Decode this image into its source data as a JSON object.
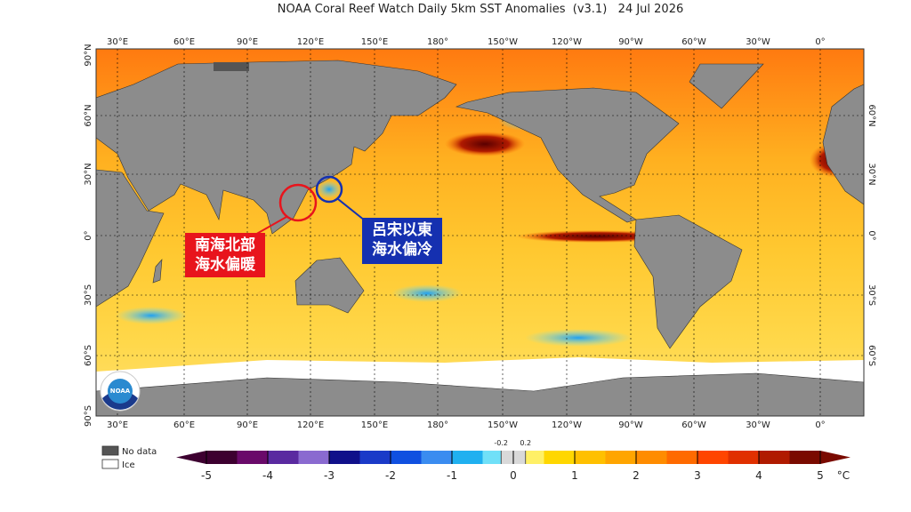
{
  "title": "NOAA Coral Reef Watch Daily 5km SST Anomalies  (v3.1)   24 Jul 2026",
  "longitude_labels": [
    "30°E",
    "60°E",
    "90°E",
    "120°E",
    "150°E",
    "180°",
    "150°W",
    "120°W",
    "90°W",
    "60°W",
    "30°W",
    "0°"
  ],
  "latitude_labels_left": [
    "90°N",
    "60°N",
    "30°N",
    "0°",
    "30°S",
    "60°S",
    "90°S"
  ],
  "latitude_labels_right": [
    "60°N",
    "30°N",
    "0°",
    "30°S",
    "60°S"
  ],
  "annotations": [
    {
      "lines": [
        "南海北部",
        "海水偏暖"
      ],
      "color": "#e8141c"
    },
    {
      "lines": [
        "呂宋以東",
        "海水偏冷"
      ],
      "color": "#1530b0"
    }
  ],
  "logo": "NOAA",
  "legend": [
    {
      "label": "No data",
      "color": "#555555"
    },
    {
      "label": "Ice",
      "color": "#ffffff"
    }
  ],
  "colorbar": {
    "ticks": [
      -5,
      -4,
      -3,
      -2,
      -1,
      0,
      1,
      2,
      3,
      4,
      5
    ],
    "fine_ticks": [
      -0.2,
      0.2
    ],
    "unit": "°C",
    "colors": [
      "#3d0030",
      "#6a0a6a",
      "#5a2aa0",
      "#8a6ad0",
      "#10108a",
      "#1a3ac8",
      "#1050e0",
      "#3a8cf0",
      "#20b0f0",
      "#70e0f8",
      "#fff066",
      "#ffd700",
      "#ffc000",
      "#ffa500",
      "#ff8c00",
      "#ff6a00",
      "#ff4500",
      "#e03000",
      "#b01a00",
      "#7a0a00"
    ],
    "neutral_color": "#d9d9d9"
  }
}
